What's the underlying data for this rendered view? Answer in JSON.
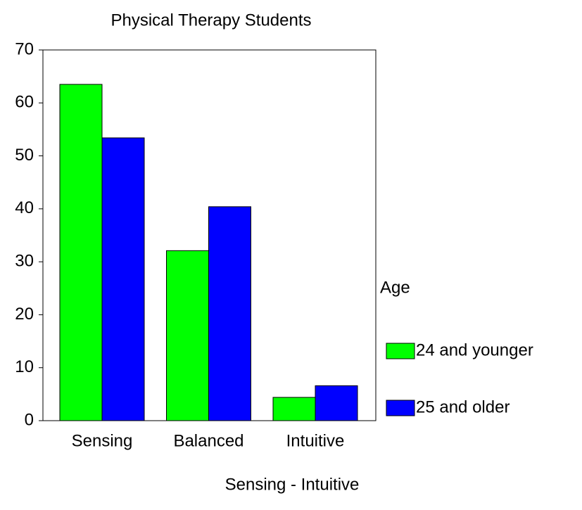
{
  "chart_data": {
    "type": "bar",
    "title": "Physical Therapy Students",
    "x_label": "Sensing - Intuitive",
    "legend_title": "Age",
    "categories": [
      "Sensing",
      "Balanced",
      "Intuitive"
    ],
    "series": [
      {
        "name": "24 and younger",
        "color": "#00ff00",
        "values": [
          63.5,
          32.1,
          4.4
        ]
      },
      {
        "name": "25 and older",
        "color": "#0000ff",
        "values": [
          53.4,
          40.4,
          6.6
        ]
      }
    ],
    "ylim": [
      0,
      70
    ],
    "yticks": [
      0,
      10,
      20,
      30,
      40,
      50,
      60,
      70
    ],
    "legend": "right"
  }
}
